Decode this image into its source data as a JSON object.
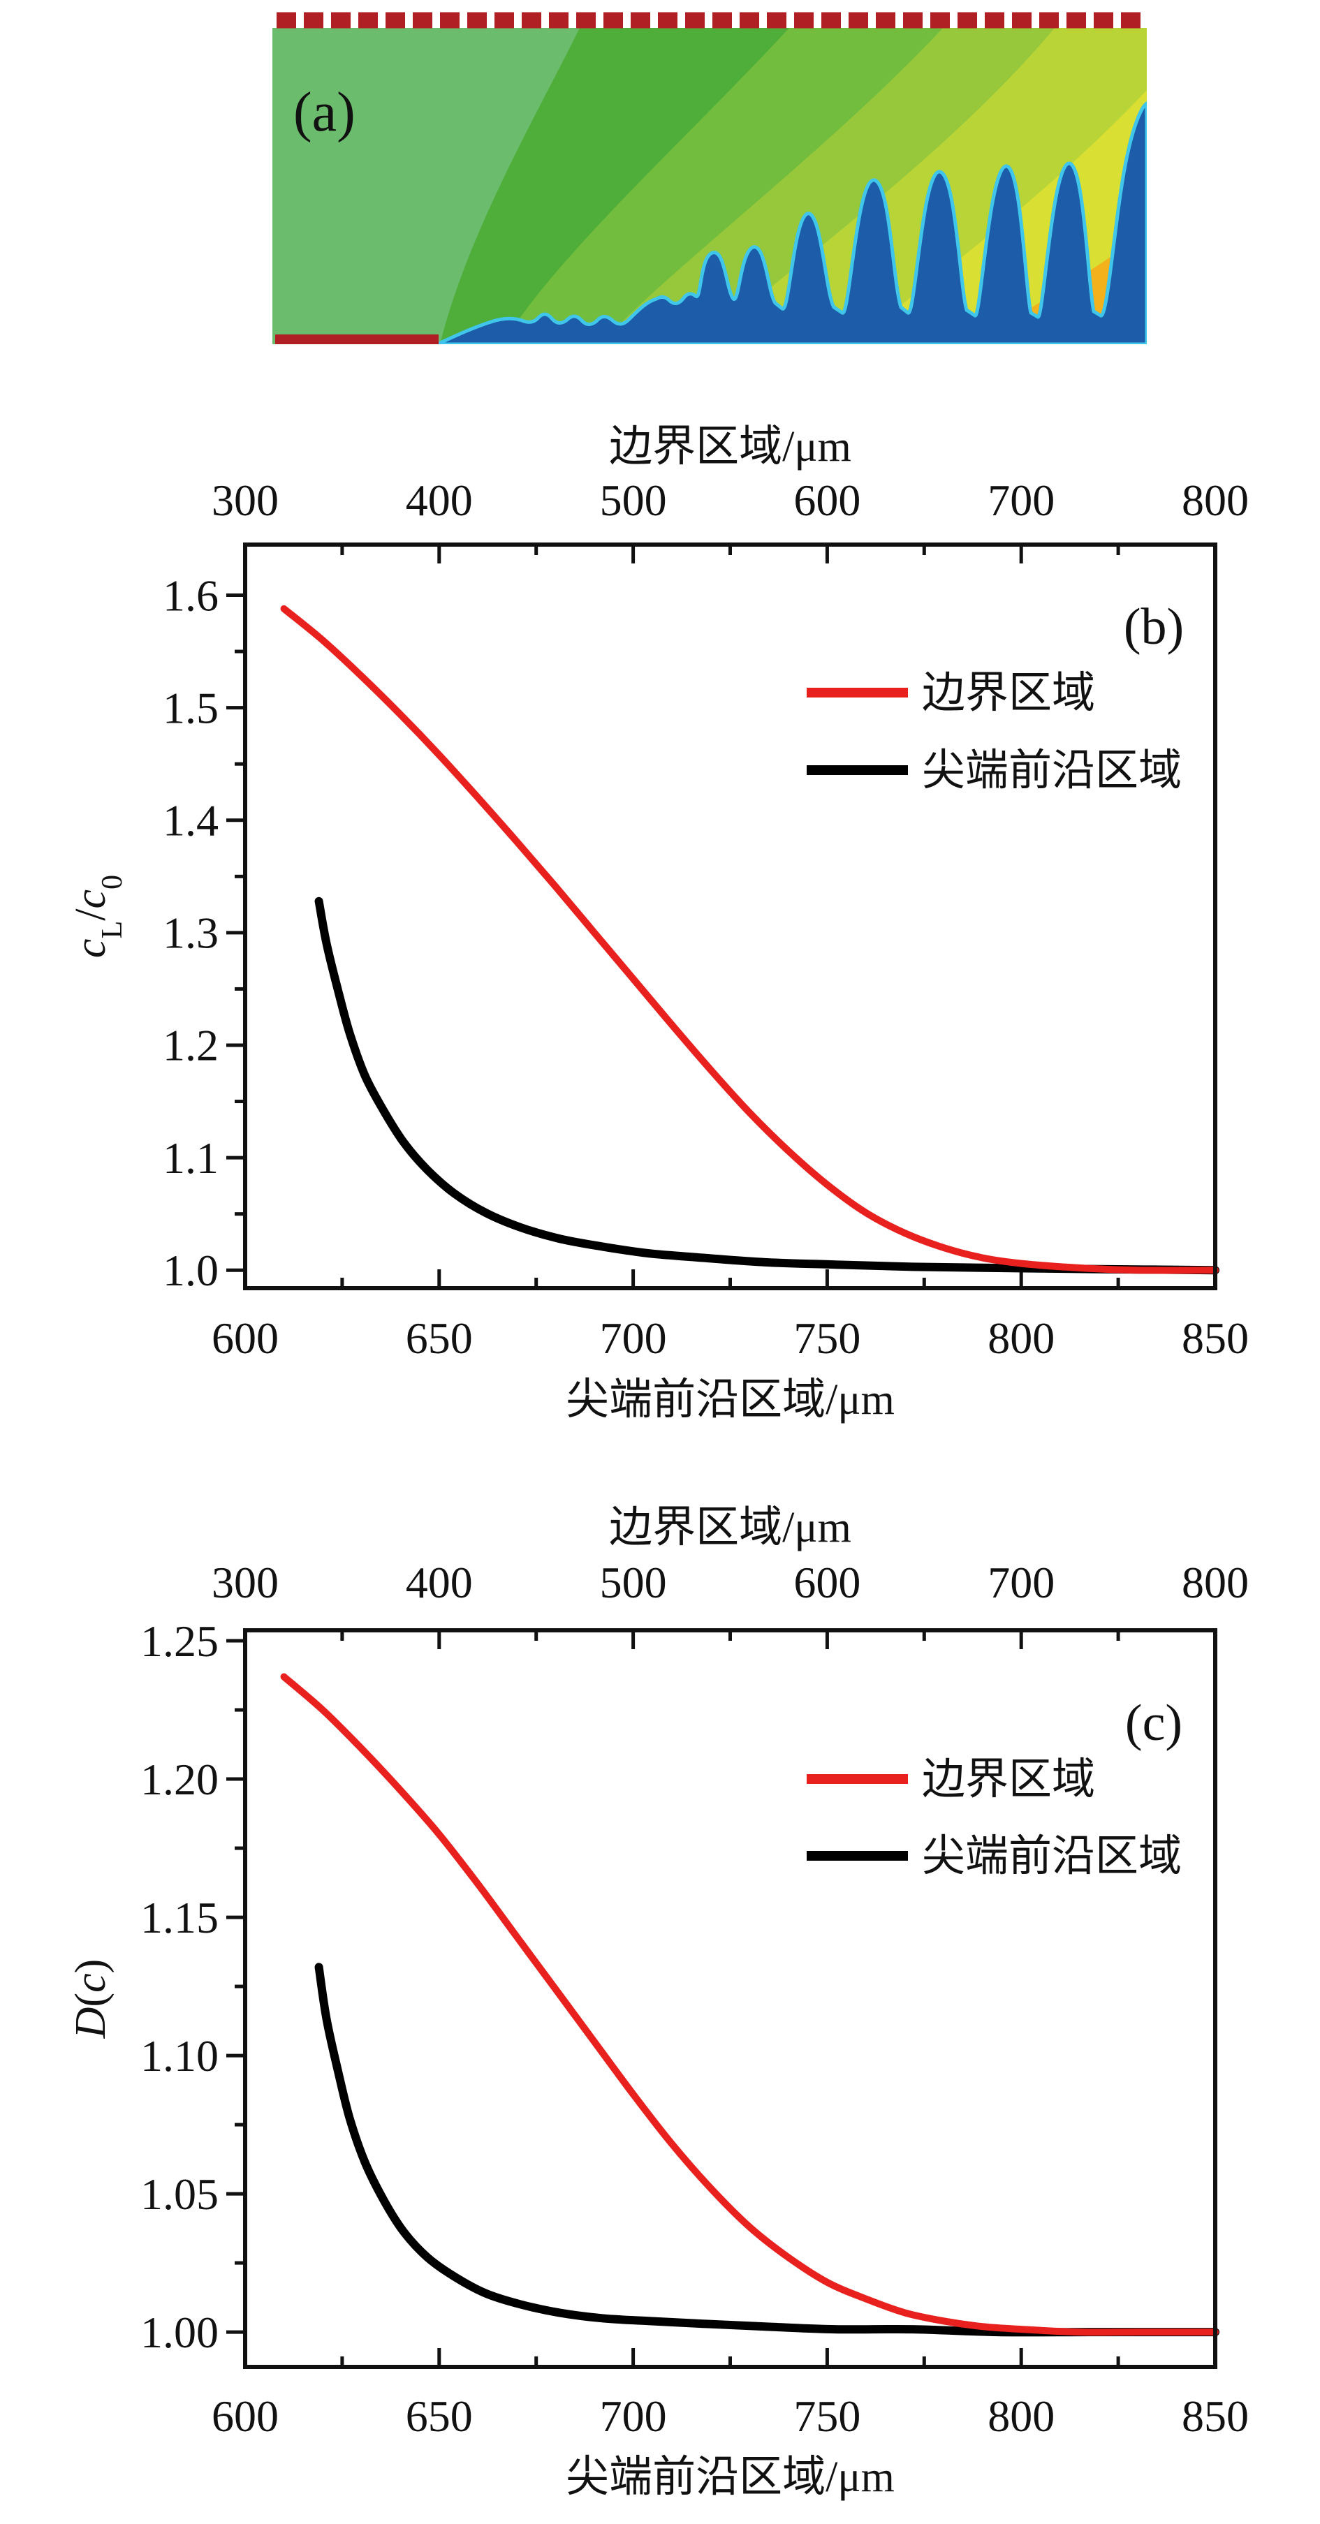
{
  "figure_title": "",
  "panel_a": {
    "label": "(a)",
    "colors": {
      "boundary_dashed_line": "#b01f24",
      "boundary_solid_line": "#b01f24",
      "band_colors": [
        "#6cbc6d",
        "#4fae3a",
        "#72bd3d",
        "#97c83b",
        "#b9d437",
        "#d9df33",
        "#f3b11c"
      ],
      "solid_phase_blue": "#1d5ca8",
      "interface_glow_cyan": "#3fc6ea"
    }
  },
  "chart_data": [
    {
      "id": "b",
      "type": "line",
      "panel_label": "(b)",
      "top_axis": {
        "label": "边界区域/μm",
        "min": 300,
        "max": 800,
        "major_ticks": [
          300,
          400,
          500,
          600,
          700,
          800
        ],
        "tick_labels": [
          "300",
          "400",
          "500",
          "600",
          "700",
          "800"
        ],
        "minor_ticks": [
          350,
          450,
          550,
          650,
          750
        ]
      },
      "bottom_axis": {
        "label": "尖端前沿区域/μm",
        "min": 600,
        "max": 850,
        "major_ticks": [
          600,
          650,
          700,
          750,
          800,
          850
        ],
        "tick_labels": [
          "600",
          "650",
          "700",
          "750",
          "800",
          "850"
        ],
        "minor_ticks": [
          625,
          675,
          725,
          775,
          825
        ]
      },
      "y_axis": {
        "label_plain": "cL/c0",
        "label_rich": [
          [
            "c",
            "i"
          ],
          [
            "L",
            "sub"
          ],
          [
            "/",
            ""
          ],
          [
            "c",
            "i"
          ],
          [
            "0",
            "sub"
          ]
        ],
        "min": 0.984,
        "max": 1.645,
        "major_ticks": [
          1.0,
          1.1,
          1.2,
          1.3,
          1.4,
          1.5,
          1.6
        ],
        "tick_labels": [
          "1.0",
          "1.1",
          "1.2",
          "1.3",
          "1.4",
          "1.5",
          "1.6"
        ],
        "minor_ticks": [
          1.05,
          1.15,
          1.25,
          1.35,
          1.45,
          1.55
        ]
      },
      "legend": {
        "position": "upper right",
        "entries": [
          {
            "name": "边界区域",
            "color": "#e8201e"
          },
          {
            "name": "尖端前沿区域",
            "color": "#000000"
          }
        ]
      },
      "series": [
        {
          "name": "尖端前沿区域",
          "color": "#000000",
          "width": 12,
          "x_axis": "bottom",
          "x": [
            619,
            621,
            624,
            627,
            631,
            636,
            641,
            647,
            654,
            662,
            671,
            681,
            692,
            704,
            718,
            734,
            752,
            772,
            794,
            818,
            850
          ],
          "y": [
            1.328,
            1.29,
            1.248,
            1.21,
            1.172,
            1.14,
            1.113,
            1.089,
            1.068,
            1.051,
            1.038,
            1.028,
            1.021,
            1.015,
            1.011,
            1.007,
            1.005,
            1.003,
            1.002,
            1.001,
            1.0
          ]
        },
        {
          "name": "边界区域",
          "color": "#e8201e",
          "width": 10,
          "x_axis": "bottom",
          "x_top_equivalent": [
            320,
            340,
            360,
            380,
            400,
            420,
            440,
            460,
            480,
            500,
            520,
            540,
            560,
            580,
            600,
            620,
            640,
            660,
            680,
            700,
            730,
            760,
            800
          ],
          "x": [
            610,
            620,
            630,
            640,
            650,
            660,
            670,
            680,
            690,
            700,
            710,
            720,
            730,
            740,
            750,
            760,
            770,
            780,
            790,
            800,
            815,
            830,
            850
          ],
          "y": [
            1.588,
            1.56,
            1.528,
            1.494,
            1.458,
            1.42,
            1.381,
            1.341,
            1.3,
            1.259,
            1.218,
            1.178,
            1.14,
            1.106,
            1.076,
            1.051,
            1.033,
            1.02,
            1.011,
            1.006,
            1.002,
            1.0,
            1.0
          ]
        }
      ]
    },
    {
      "id": "c",
      "type": "line",
      "panel_label": "(c)",
      "top_axis": {
        "label": "边界区域/μm",
        "min": 300,
        "max": 800,
        "major_ticks": [
          300,
          400,
          500,
          600,
          700,
          800
        ],
        "tick_labels": [
          "300",
          "400",
          "500",
          "600",
          "700",
          "800"
        ],
        "minor_ticks": [
          350,
          450,
          550,
          650,
          750
        ]
      },
      "bottom_axis": {
        "label": "尖端前沿区域/μm",
        "min": 600,
        "max": 850,
        "major_ticks": [
          600,
          650,
          700,
          750,
          800,
          850
        ],
        "tick_labels": [
          "600",
          "650",
          "700",
          "750",
          "800",
          "850"
        ],
        "minor_ticks": [
          625,
          675,
          725,
          775,
          825
        ]
      },
      "y_axis": {
        "label_plain": "D(c)",
        "label_rich": [
          [
            "D",
            "i"
          ],
          [
            "(",
            ""
          ],
          [
            "c",
            "i"
          ],
          [
            ")",
            ""
          ]
        ],
        "min": 0.9874,
        "max": 1.2538,
        "major_ticks": [
          1.0,
          1.05,
          1.1,
          1.15,
          1.2,
          1.25
        ],
        "tick_labels": [
          "1.00",
          "1.05",
          "1.10",
          "1.15",
          "1.20",
          "1.25"
        ],
        "minor_ticks": [
          1.025,
          1.075,
          1.125,
          1.175,
          1.225
        ]
      },
      "legend": {
        "position": "upper right",
        "entries": [
          {
            "name": "边界区域",
            "color": "#e8201e"
          },
          {
            "name": "尖端前沿区域",
            "color": "#000000"
          }
        ]
      },
      "series": [
        {
          "name": "尖端前沿区域",
          "color": "#000000",
          "width": 12,
          "x_axis": "bottom",
          "x": [
            619,
            621,
            624,
            627,
            631,
            636,
            641,
            647,
            654,
            662,
            671,
            681,
            692,
            704,
            718,
            734,
            752,
            772,
            794,
            818,
            850
          ],
          "y": [
            1.132,
            1.113,
            1.094,
            1.077,
            1.061,
            1.047,
            1.036,
            1.027,
            1.02,
            1.014,
            1.01,
            1.007,
            1.005,
            1.004,
            1.003,
            1.002,
            1.001,
            1.001,
            1.0,
            1.0,
            1.0
          ]
        },
        {
          "name": "边界区域",
          "color": "#e8201e",
          "width": 10,
          "x_axis": "bottom",
          "x_top_equivalent": [
            320,
            340,
            360,
            380,
            400,
            420,
            440,
            460,
            480,
            500,
            520,
            540,
            560,
            580,
            600,
            620,
            640,
            660,
            680,
            700,
            730,
            760,
            800
          ],
          "x": [
            610,
            620,
            630,
            640,
            650,
            660,
            670,
            680,
            690,
            700,
            710,
            720,
            730,
            740,
            750,
            760,
            770,
            780,
            790,
            800,
            815,
            830,
            850
          ],
          "y": [
            1.237,
            1.225,
            1.211,
            1.196,
            1.18,
            1.162,
            1.143,
            1.124,
            1.105,
            1.086,
            1.068,
            1.052,
            1.038,
            1.027,
            1.018,
            1.012,
            1.007,
            1.004,
            1.002,
            1.001,
            1.0,
            1.0,
            1.0
          ]
        }
      ]
    }
  ]
}
